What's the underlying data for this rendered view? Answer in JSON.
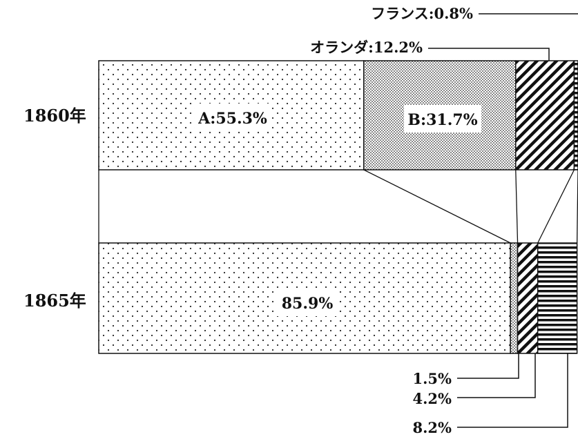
{
  "chart_data": {
    "type": "bar",
    "orientation": "horizontal",
    "stacked": true,
    "normalized_to_percent": true,
    "title": "",
    "xlabel": "",
    "ylabel": "",
    "legend": "none",
    "grid": false,
    "categories": [
      "1860年",
      "1865年"
    ],
    "series": [
      {
        "values": [
          55.3,
          85.9
        ],
        "labels": [
          "A:55.3%",
          "85.9%"
        ]
      },
      {
        "values": [
          31.7,
          1.5
        ],
        "labels": [
          "B:31.7%",
          "1.5%"
        ]
      },
      {
        "values": [
          12.2,
          4.2
        ],
        "labels": [
          "オランダ:12.2%",
          "4.2%"
        ]
      },
      {
        "values": [
          0.8,
          8.2
        ],
        "labels": [
          "フランス:0.8%",
          "8.2%"
        ]
      }
    ],
    "patterns": [
      "sparse-dots",
      "dense-dots",
      "diagonal-hatch",
      "horizontal-stripes"
    ]
  }
}
